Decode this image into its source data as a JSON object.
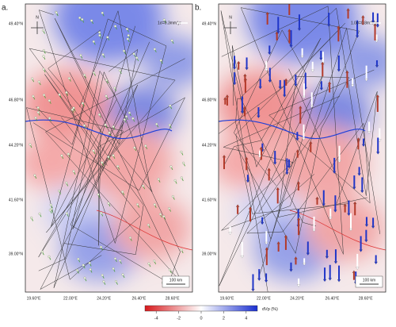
{
  "panels": [
    {
      "label": "a.",
      "scale_text": "1σ=0.3mm/yr",
      "scale_bar": "100 km"
    },
    {
      "label": "b.",
      "scale_text": "1.0σ=0.8mm/yr",
      "scale_bar": "100 km"
    }
  ],
  "north": "N",
  "lat_labels": [
    "49.40°N",
    "46.80°N",
    "44.20°N",
    "41.60°N",
    "39.00°N"
  ],
  "lon_labels": [
    "19.60°E",
    "22.00°E",
    "24.20°E",
    "26.40°E",
    "28.60°E"
  ],
  "colorbar": {
    "title": "dVp (%)",
    "lim": [
      -5,
      5
    ],
    "ticks": [
      -4,
      -2,
      0,
      2,
      4
    ]
  }
}
